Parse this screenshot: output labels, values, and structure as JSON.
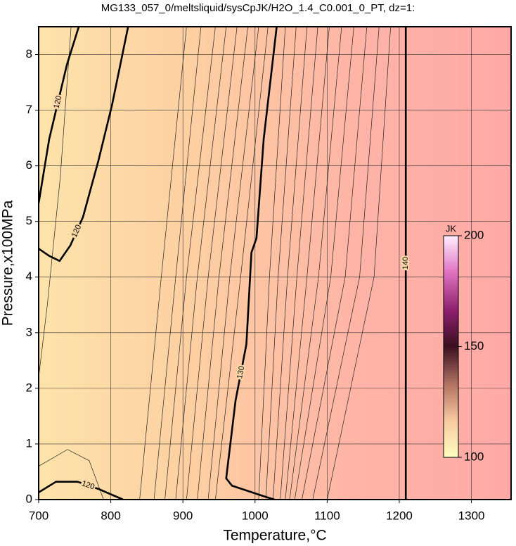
{
  "chart_data": {
    "type": "contour",
    "title": "MG133_057_0/meltsliquid/sysCpJK/H2O_1.4_C0.001_0_PT, dz=1:",
    "x_label": "Temperature,°C",
    "y_label": "Pressure,x100MPa",
    "xlim": [
      700,
      1355
    ],
    "ylim": [
      0,
      8.5
    ],
    "xticks": [
      700,
      800,
      900,
      1000,
      1100,
      1200,
      1300
    ],
    "yticks": [
      0,
      1,
      2,
      3,
      4,
      5,
      6,
      7,
      8
    ],
    "grid": true,
    "field_colors": [
      "#fde3aa",
      "#fdcfa2",
      "#ffb4a6",
      "#ffa9a6"
    ],
    "contours": [
      {
        "level": 120,
        "x": [
          755.6,
          739,
          714.6,
          700
        ],
        "y": [
          8.5,
          7.81,
          6.48,
          5.33
        ]
      },
      {
        "level": 120,
        "x": [
          700,
          714.6,
          729,
          744,
          761.5,
          783,
          802,
          824
        ],
        "y": [
          4.51,
          4.38,
          4.29,
          4.57,
          5.08,
          6.1,
          7.11,
          8.5
        ]
      },
      {
        "level": 120,
        "x": [
          700,
          724,
          754,
          783,
          817
        ],
        "y": [
          0.13,
          0.32,
          0.32,
          0.19,
          0
        ]
      },
      {
        "level": 130,
        "x": [
          1030,
          1012,
          1002,
          995,
          988,
          973,
          960,
          968,
          1012,
          1027
        ],
        "y": [
          8.5,
          6.48,
          4.7,
          4.44,
          2.79,
          1.78,
          0.38,
          0.25,
          0.06,
          0
        ]
      },
      {
        "level": 140,
        "x": [
          1209,
          1209
        ],
        "y": [
          0,
          8.5
        ]
      }
    ],
    "minor_contours": [
      {
        "x": [
          840,
          870,
          905
        ],
        "y": [
          0,
          4,
          8.5
        ]
      },
      {
        "x": [
          860,
          890,
          925
        ],
        "y": [
          0,
          4,
          8.5
        ]
      },
      {
        "x": [
          875,
          905,
          945
        ],
        "y": [
          0,
          4,
          8.5
        ]
      },
      {
        "x": [
          890,
          920,
          960
        ],
        "y": [
          0,
          4,
          8.5
        ]
      },
      {
        "x": [
          905,
          935,
          975
        ],
        "y": [
          0,
          4,
          8.5
        ]
      },
      {
        "x": [
          920,
          950,
          990
        ],
        "y": [
          0,
          4,
          8.5
        ]
      },
      {
        "x": [
          935,
          965,
          1005
        ],
        "y": [
          0,
          4,
          8.5
        ]
      },
      {
        "x": [
          945,
          980,
          1018
        ],
        "y": [
          0,
          4,
          8.5
        ]
      },
      {
        "x": [
          1005,
          1020,
          1042
        ],
        "y": [
          0,
          4,
          8.5
        ]
      },
      {
        "x": [
          1015,
          1032,
          1057
        ],
        "y": [
          0,
          4,
          8.5
        ]
      },
      {
        "x": [
          1025,
          1045,
          1072
        ],
        "y": [
          0,
          4,
          8.5
        ]
      },
      {
        "x": [
          1035,
          1058,
          1087
        ],
        "y": [
          0,
          4,
          8.5
        ]
      },
      {
        "x": [
          1042,
          1072,
          1103
        ],
        "y": [
          0,
          4,
          8.5
        ]
      },
      {
        "x": [
          1048,
          1088,
          1120
        ],
        "y": [
          0,
          4,
          8.5
        ]
      },
      {
        "x": [
          1055,
          1105,
          1137
        ],
        "y": [
          0,
          4,
          8.5
        ]
      },
      {
        "x": [
          1065,
          1125,
          1155
        ],
        "y": [
          0,
          4,
          8.5
        ]
      },
      {
        "x": [
          1080,
          1145,
          1172
        ],
        "y": [
          0,
          4,
          8.5
        ]
      },
      {
        "x": [
          1100,
          1165,
          1188
        ],
        "y": [
          0,
          4,
          8.5
        ]
      },
      {
        "x": [
          700,
          712,
          730,
          745
        ],
        "y": [
          2.2,
          3.5,
          5.8,
          8.5
        ]
      },
      {
        "x": [
          700,
          740,
          770,
          790
        ],
        "y": [
          0.6,
          0.9,
          0.7,
          0
        ]
      }
    ],
    "colorbar": {
      "label": "JK",
      "lim": [
        100,
        200
      ],
      "ticks": [
        100,
        150,
        200
      ],
      "colors": [
        "#ffffc0",
        "#f7c9a0",
        "#b07060",
        "#3a1020",
        "#902070",
        "#e070c0",
        "#fff0ff"
      ]
    }
  }
}
